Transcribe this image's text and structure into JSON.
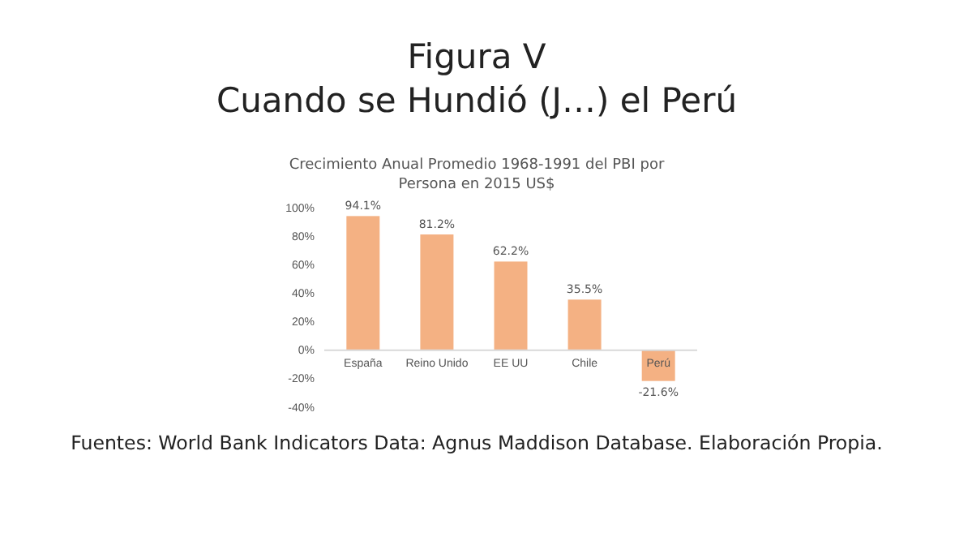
{
  "chart_data": {
    "type": "bar",
    "title": "Figura V\nCuando se Hundió (J…) el Perú",
    "subtitle": "Crecimiento Anual Promedio 1968-1991  del PBI por\nPersona en 2015  US$",
    "categories": [
      "España",
      "Reino Unido",
      "EE UU",
      "Chile",
      "Perú"
    ],
    "values": [
      94.1,
      81.2,
      62.2,
      35.5,
      -21.6
    ],
    "value_labels": [
      "94.1%",
      "81.2%",
      "62.2%",
      "35.5%",
      "-21.6%"
    ],
    "color": "#f4b183",
    "ylim": [
      -40,
      100
    ],
    "yticks": [
      {
        "value": -40,
        "label": "-40%"
      },
      {
        "value": -20,
        "label": "-20%"
      },
      {
        "value": 0,
        "label": "0%"
      },
      {
        "value": 20,
        "label": "20%"
      },
      {
        "value": 40,
        "label": "40%"
      },
      {
        "value": 60,
        "label": "60%"
      },
      {
        "value": 80,
        "label": "80%"
      },
      {
        "value": 100,
        "label": "100%"
      }
    ],
    "grid": false,
    "annotations": [
      "Fuentes: World Bank Indicators Data: Agnus Maddison Database. Elaboración Propia."
    ]
  }
}
